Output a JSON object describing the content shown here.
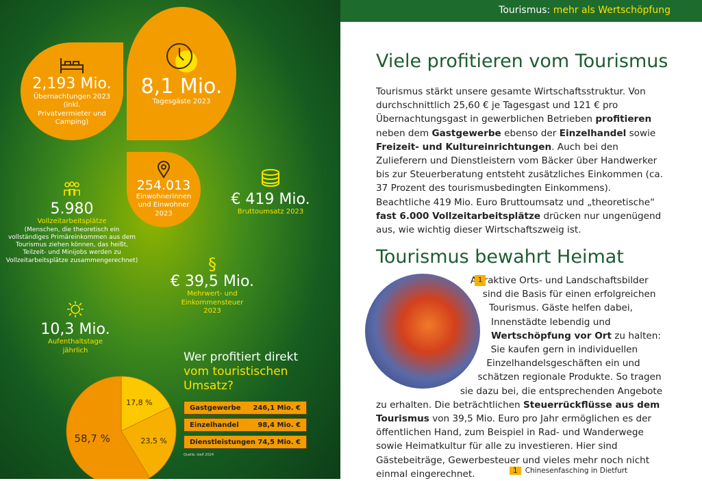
{
  "header": {
    "title_part1": "Tourismus:",
    "title_part2": "mehr als Wertschöpfung"
  },
  "stats": [
    {
      "value": "2,193 Mio.",
      "label": "Übernachtungen 2023",
      "note": "(inkl. Privatvermieter und Camping)"
    },
    {
      "value": "8,1 Mio.",
      "label": "Tagesgäste 2023"
    },
    {
      "value": "254.013",
      "label": "Einwohnerinnen und Einwohner 2023"
    },
    {
      "value": "€ 419 Mio.",
      "label": "Bruttoumsatz 2023"
    },
    {
      "value": "5.980",
      "label": "Vollzeitarbeitsplätze",
      "note": "(Menschen, die theoretisch ein vollständiges Primäreinkommen aus dem Tourismus ziehen können, das heißt, Teilzeit- und Minijobs werden zu Vollzeitarbeitsplätze zusammengerechnet)"
    },
    {
      "value": "€ 39,5 Mio.",
      "label": "Mehrwert- und Einkommensteuer 2023"
    },
    {
      "value": "10,3 Mio.",
      "label": "Aufenthaltstage jährlich"
    }
  ],
  "pie": {
    "title_part1": "Wer profitiert direkt",
    "title_part2": "vom touristischen Umsatz?",
    "values": [
      17.8,
      23.5,
      58.7
    ],
    "value_labels": [
      "17,8 %",
      "23,5 %",
      "58,7 %"
    ],
    "colors": [
      "#fcc800",
      "#f7b000",
      "#f29400"
    ],
    "table": [
      [
        "Gastgewerbe",
        "246,1 Mio. €"
      ],
      [
        "Einzelhandel",
        "98,4 Mio. €"
      ],
      [
        "Dienstleistungen",
        "74,5 Mio. €"
      ]
    ],
    "source": "Quelle: dwif 2024"
  },
  "section1": {
    "title": "Viele profitieren vom Tourismus",
    "segments": [
      {
        "t": "Tourismus stärkt unsere gesamte Wirtschaftsstruktur. Von durchschnittlich 25,60 € je Tagesgast und 121 € pro Übernachtungsgast in gewerblichen Betrieben ",
        "b": false
      },
      {
        "t": "profitieren",
        "b": true
      },
      {
        "t": " neben dem ",
        "b": false
      },
      {
        "t": "Gastgewerbe",
        "b": true
      },
      {
        "t": " ebenso der ",
        "b": false
      },
      {
        "t": "Einzelhandel",
        "b": true
      },
      {
        "t": " sowie ",
        "b": false
      },
      {
        "t": "Freizeit- und Kultureinrichtungen",
        "b": true
      },
      {
        "t": ". Auch bei den Zulieferern und Dienstleistern vom Bäcker über Handwerker bis zur Steuerberatung entsteht zusätzliches Einkommen (ca. 37 Prozent des tourismusbedingten Einkommens). Beachtliche 419 Mio. Euro Bruttoumsatz und „theoretische“ ",
        "b": false
      },
      {
        "t": "fast 6.000 Vollzeitarbeitsplätze",
        "b": true
      },
      {
        "t": " drücken nur ungenügend aus, wie wichtig dieser Wirtschaftszweig ist.",
        "b": false
      }
    ]
  },
  "section2": {
    "title": "Tourismus bewahrt Heimat",
    "badge": "1",
    "segments": [
      {
        "t": "Attraktive Orts- und Landschaftsbilder sind die Basis für einen erfolgreichen Tourismus. Gäste helfen dabei, Innenstädte lebendig und ",
        "b": false
      },
      {
        "t": "Wertschöpfung vor Ort",
        "b": true
      },
      {
        "t": " zu halten: Sie kaufen gern in individuellen Einzelhandelsgeschäften ein und schätzen regionale Produkte. So tragen sie dazu bei, die entsprechenden Angebote zu erhalten. Die beträchtlichen ",
        "b": false
      },
      {
        "t": "Steuerrückflüsse aus dem Tourismus",
        "b": true
      },
      {
        "t": " von 39,5 Mio. Euro pro Jahr ermöglichen es der öffentlichen Hand, zum Beispiel in Rad- und Wanderwege sowie Heimatkultur für alle zu investieren. Hier sind Gästebeiträge, Gewerbesteuer und vieles mehr noch nicht einmal eingerechnet.",
        "b": false
      }
    ],
    "caption": {
      "number": "1",
      "text": "Chinesenfasching in Dietfurt"
    }
  }
}
